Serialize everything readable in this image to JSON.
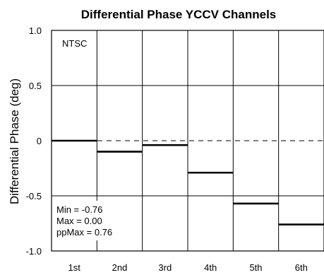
{
  "chart_data": {
    "type": "bar",
    "title": "Differential Phase YCCV Channels",
    "xlabel": "",
    "ylabel": "Differential Phase (deg)",
    "categories": [
      "1st",
      "2nd",
      "3rd",
      "4th",
      "5th",
      "6th"
    ],
    "values": [
      0.0,
      -0.1,
      -0.04,
      -0.29,
      -0.57,
      -0.76
    ],
    "ylim": [
      -1.0,
      1.0
    ],
    "yticks": [
      "1.0",
      "0.5",
      "0",
      "-0.5",
      "-1.0"
    ],
    "ytick_values": [
      1.0,
      0.5,
      0,
      -0.5,
      -1.0
    ],
    "grid": true,
    "reference_line": 0,
    "standard_label": "NTSC",
    "stats": [
      "Min = -0.76",
      "Max = 0.00",
      "ppMax = 0.76"
    ],
    "colors": {
      "mark": "#000000",
      "grid": "#000000",
      "background": "#ffffff"
    }
  }
}
